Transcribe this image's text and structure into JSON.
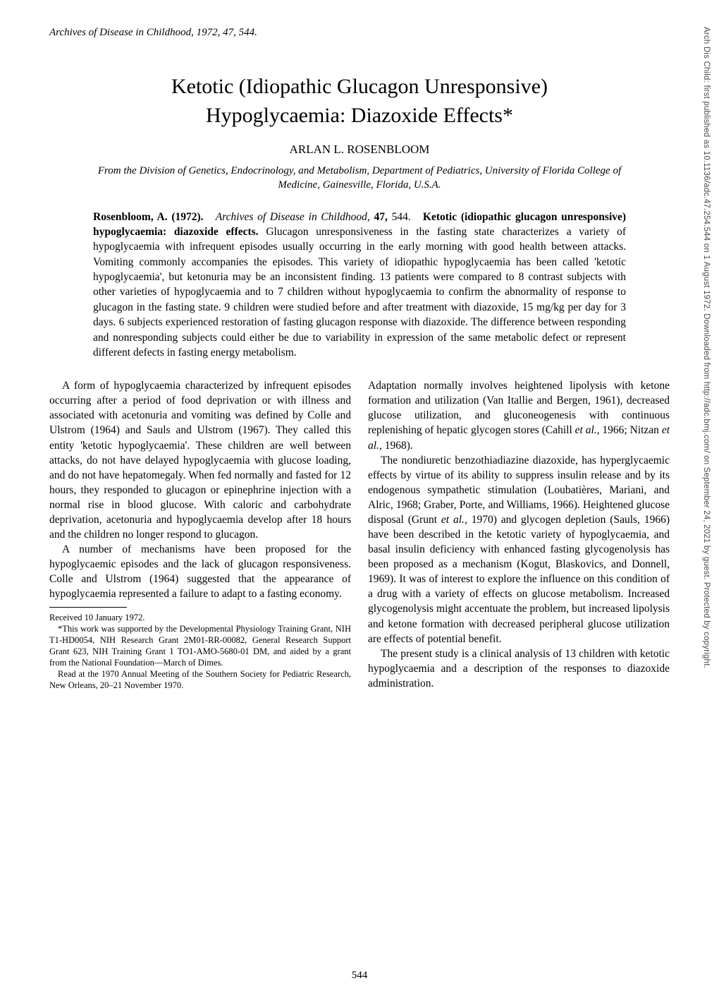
{
  "journal_ref": "Archives of Disease in Childhood, 1972, 47, 544.",
  "title_line1": "Ketotic (Idiopathic Glucagon Unresponsive)",
  "title_line2": "Hypoglycaemia: Diazoxide Effects*",
  "author": "ARLAN L. ROSENBLOOM",
  "affiliation": "From the Division of Genetics, Endocrinology, and Metabolism, Department of Pediatrics, University of Florida College of Medicine, Gainesville, Florida, U.S.A.",
  "abstract": {
    "citation_lead": "Rosenbloom, A. (1972).",
    "journal_it": "Archives of Disease in Childhood,",
    "vol": "47,",
    "page": "544.",
    "ab_title": "Ketotic (idiopathic glucagon unresponsive) hypoglycaemia: diazoxide effects.",
    "body": "Glucagon unresponsiveness in the fasting state characterizes a variety of hypoglycaemia with infrequent episodes usually occurring in the early morning with good health between attacks. Vomiting commonly accompanies the episodes. This variety of idiopathic hypoglycaemia has been called 'ketotic hypoglycaemia', but ketonuria may be an inconsistent finding. 13 patients were compared to 8 contrast subjects with other varieties of hypoglycaemia and to 7 children without hypoglycaemia to confirm the abnormality of response to glucagon in the fasting state. 9 children were studied before and after treatment with diazoxide, 15 mg/kg per day for 3 days. 6 subjects experienced restoration of fasting glucagon response with diazoxide. The difference between responding and nonresponding subjects could either be due to variability in expression of the same metabolic defect or represent different defects in fasting energy metabolism."
  },
  "left_col": {
    "p1": "A form of hypoglycaemia characterized by infrequent episodes occurring after a period of food deprivation or with illness and associated with acetonuria and vomiting was defined by Colle and Ulstrom (1964) and Sauls and Ulstrom (1967). They called this entity 'ketotic hypoglycaemia'. These children are well between attacks, do not have delayed hypoglycaemia with glucose loading, and do not have hepatomegaly. When fed normally and fasted for 12 hours, they responded to glucagon or epinephrine injection with a normal rise in blood glucose. With caloric and carbohydrate deprivation, acetonuria and hypoglycaemia develop after 18 hours and the children no longer respond to glucagon.",
    "p2": "A number of mechanisms have been proposed for the hypoglycaemic episodes and the lack of glucagon responsiveness. Colle and Ulstrom (1964) suggested that the appearance of hypoglycaemia represented a failure to adapt to a fasting economy."
  },
  "footnotes": {
    "received": "Received 10 January 1972.",
    "support": "*This work was supported by the Developmental Physiology Training Grant, NIH T1-HD0054, NIH Research Grant 2M01-RR-00082, General Research Support Grant 623, NIH Training Grant 1 TO1-AMO-5680-01 DM, and aided by a grant from the National Foundation—March of Dimes.",
    "read_at": "Read at the 1970 Annual Meeting of the Southern Society for Pediatric Research, New Orleans, 20–21 November 1970."
  },
  "right_col": {
    "p1_a": "Adaptation normally involves heightened lipolysis with ketone formation and utilization (Van Itallie and Bergen, 1961), decreased glucose utilization, and gluconeogenesis with continuous replenishing of hepatic glycogen stores (Cahill ",
    "p1_it1": "et al.",
    "p1_b": ", 1966; Nitzan ",
    "p1_it2": "et al.",
    "p1_c": ", 1968).",
    "p2_a": "The nondiuretic benzothiadiazine diazoxide, has hyperglycaemic effects by virtue of its ability to suppress insulin release and by its endogenous sympathetic stimulation (Loubatières, Mariani, and Alric, 1968; Graber, Porte, and Williams, 1966). Heightened glucose disposal (Grunt ",
    "p2_it1": "et al.",
    "p2_b": ", 1970) and glycogen depletion (Sauls, 1966) have been described in the ketotic variety of hypoglycaemia, and basal insulin deficiency with enhanced fasting glycogenolysis has been proposed as a mechanism (Kogut, Blaskovics, and Donnell, 1969). It was of interest to explore the influence on this condition of a drug with a variety of effects on glucose metabolism. Increased glycogenolysis might accentuate the problem, but increased lipolysis and ketone formation with decreased peripheral glucose utilization are effects of potential benefit.",
    "p3": "The present study is a clinical analysis of 13 children with ketotic hypoglycaemia and a description of the responses to diazoxide administration."
  },
  "page_number": "544",
  "sidebar": "Arch Dis Child: first published as 10.1136/adc.47.254.544 on 1 August 1972. Downloaded from http://adc.bmj.com/ on September 24, 2021 by guest. Protected by copyright."
}
